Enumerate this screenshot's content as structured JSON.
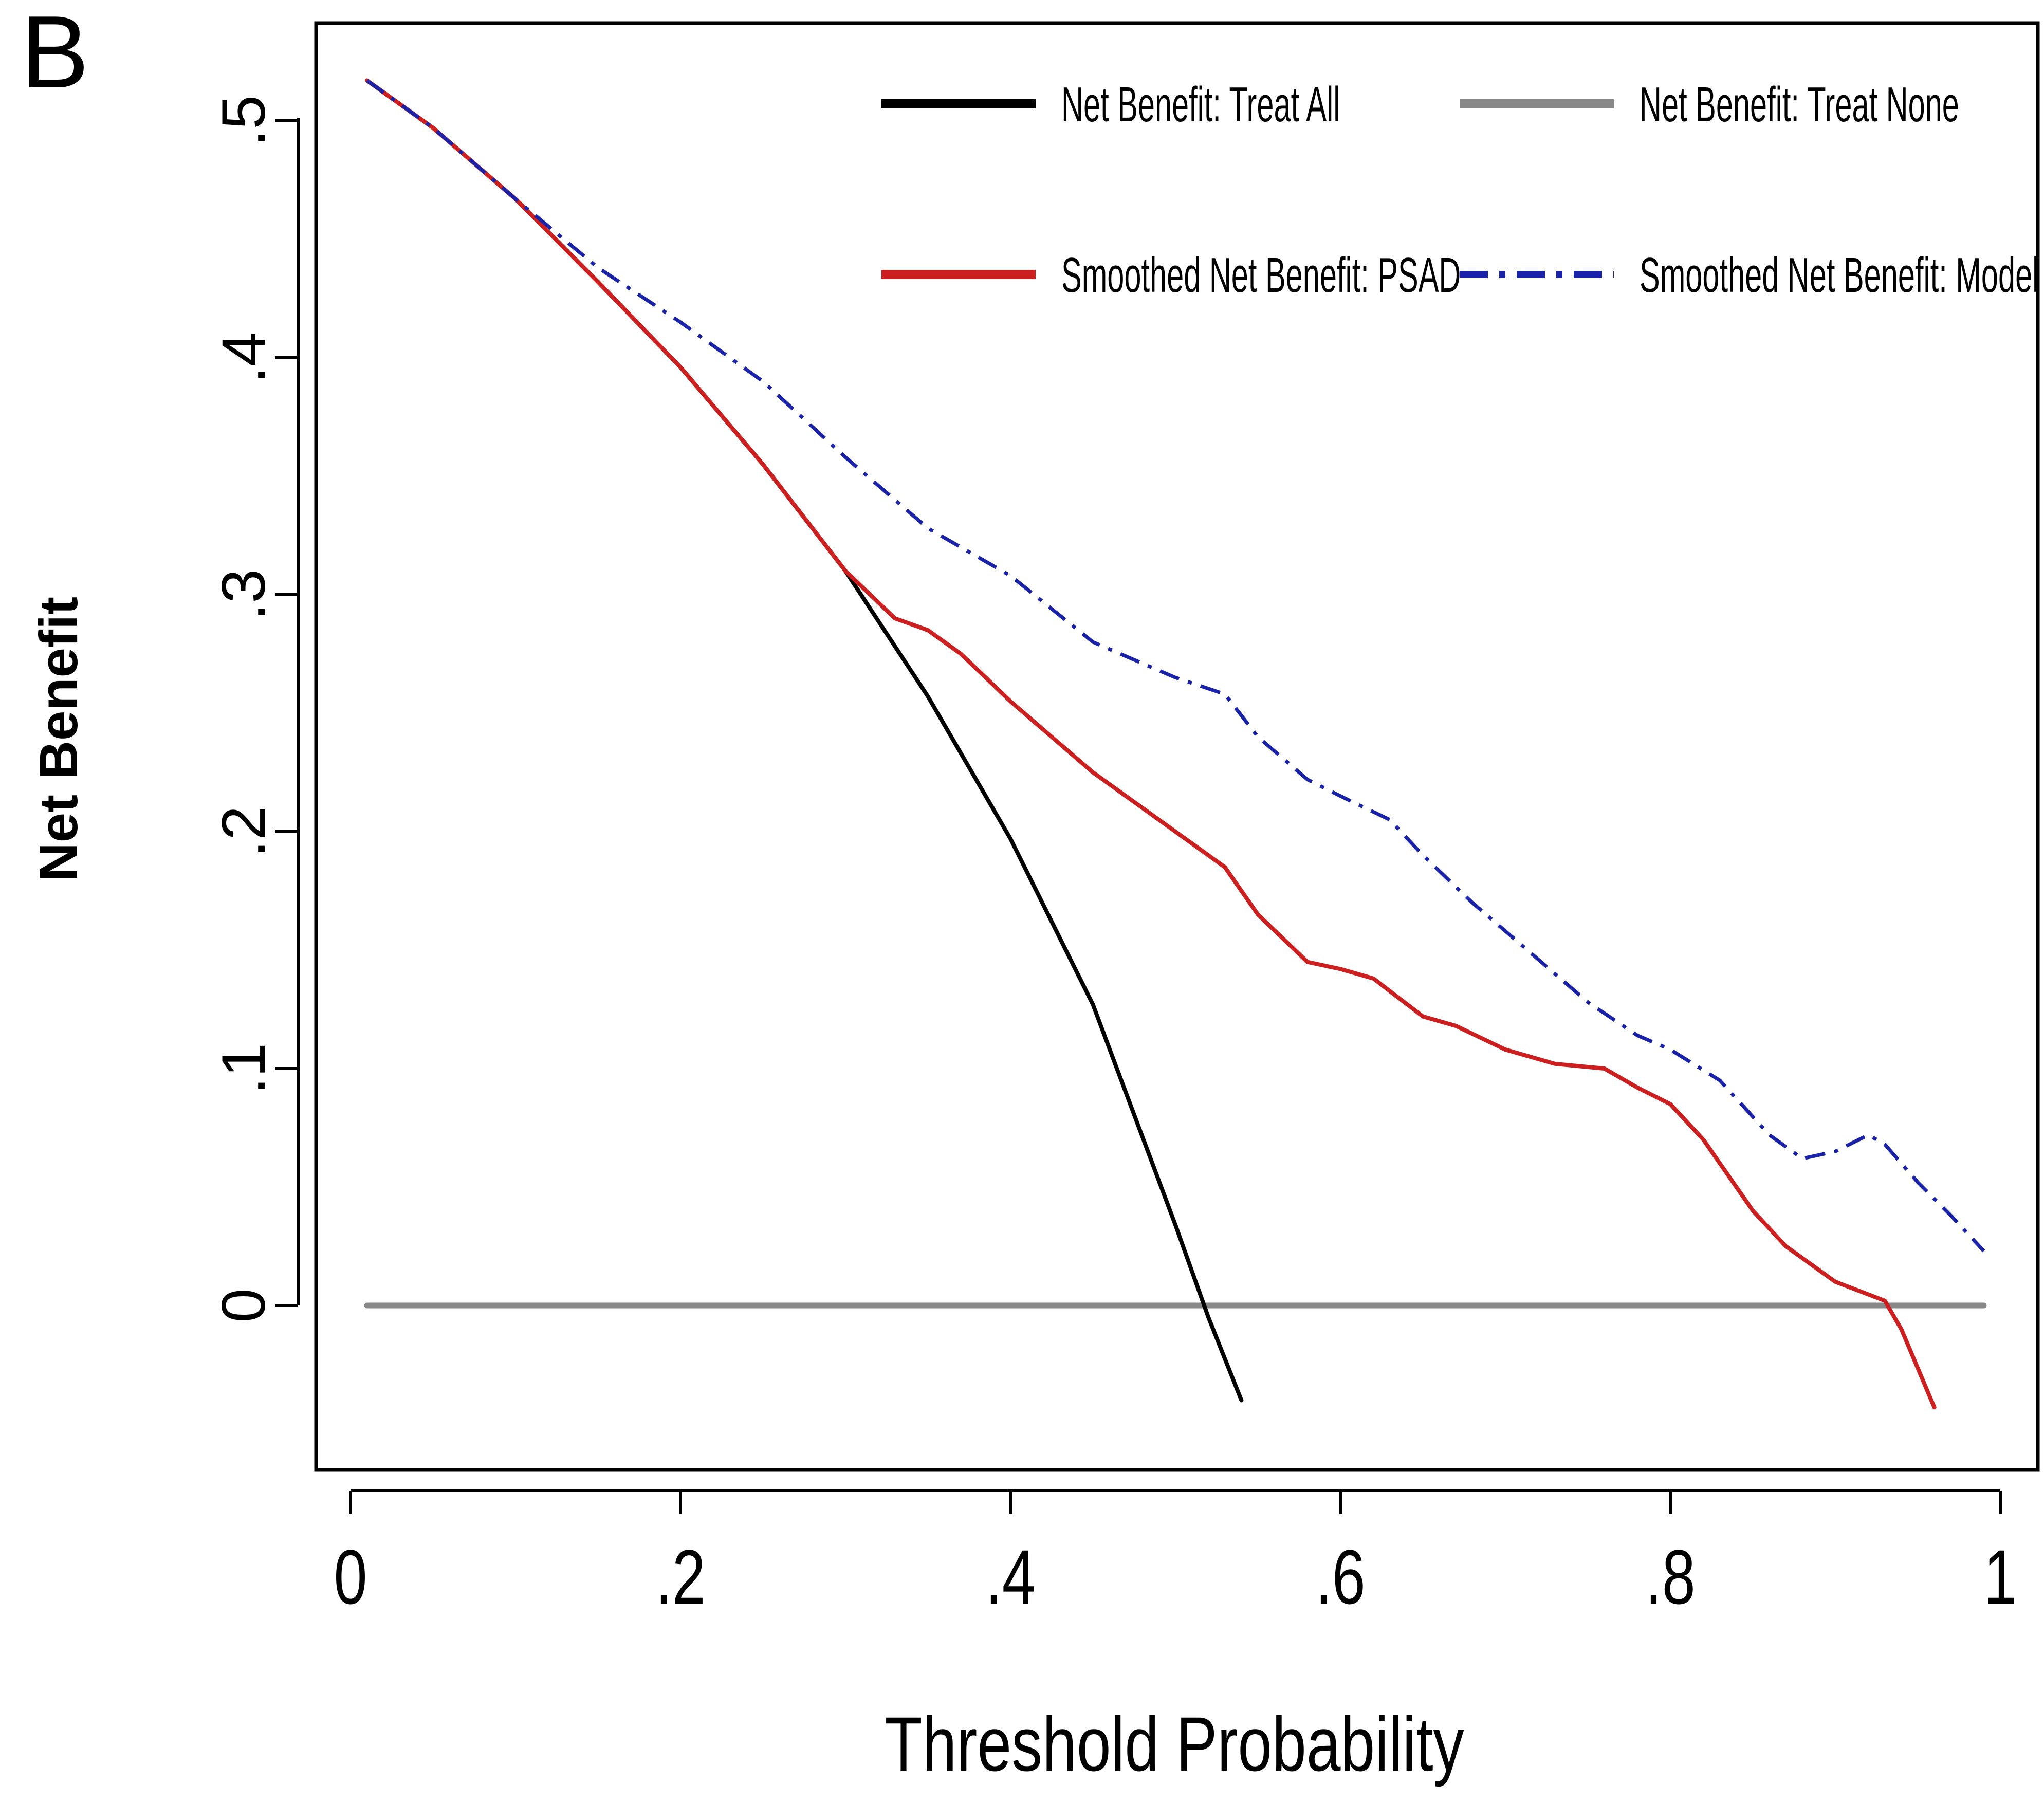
{
  "panel_label": "B",
  "chart_data": {
    "type": "line",
    "xlabel": "Threshold Probability",
    "ylabel": "Net Benefit",
    "xlim": [
      0,
      1
    ],
    "ylim": [
      -0.07,
      0.53
    ],
    "x_ticks": [
      0,
      0.2,
      0.4,
      0.6,
      0.8,
      1
    ],
    "x_tick_labels": [
      "0",
      ".2",
      ".4",
      ".6",
      ".8",
      "1"
    ],
    "y_ticks": [
      0,
      0.1,
      0.2,
      0.3,
      0.4,
      0.5
    ],
    "y_tick_labels": [
      "0",
      ".1",
      ".2",
      ".3",
      ".4",
      ".5"
    ],
    "legend_position": "top",
    "series": [
      {
        "name": "Net Benefit: Treat All",
        "legend_label": "Net Benefit: Treat All",
        "color": "#000000",
        "style": "solid",
        "x": [
          0.01,
          0.05,
          0.1,
          0.15,
          0.2,
          0.25,
          0.3,
          0.35,
          0.4,
          0.45,
          0.5,
          0.52,
          0.54
        ],
        "y": [
          0.517,
          0.497,
          0.467,
          0.432,
          0.396,
          0.355,
          0.31,
          0.257,
          0.197,
          0.127,
          0.034,
          -0.005,
          -0.04
        ]
      },
      {
        "name": "Net Benefit: Treat None",
        "legend_label": "Net Benefit: Treat None",
        "color": "#888888",
        "style": "solid",
        "x": [
          0.01,
          0.99
        ],
        "y": [
          0,
          0
        ]
      },
      {
        "name": "Smoothed Net Benefit: PSAD",
        "legend_label": "Smoothed Net Benefit: PSAD",
        "color": "#cc1f1f",
        "style": "solid",
        "x": [
          0.01,
          0.05,
          0.1,
          0.15,
          0.2,
          0.25,
          0.3,
          0.33,
          0.35,
          0.37,
          0.4,
          0.45,
          0.5,
          0.53,
          0.55,
          0.58,
          0.6,
          0.62,
          0.65,
          0.67,
          0.7,
          0.73,
          0.76,
          0.78,
          0.8,
          0.82,
          0.85,
          0.87,
          0.9,
          0.93,
          0.94,
          0.96
        ],
        "y": [
          0.517,
          0.497,
          0.467,
          0.432,
          0.396,
          0.355,
          0.31,
          0.29,
          0.285,
          0.275,
          0.255,
          0.225,
          0.2,
          0.185,
          0.165,
          0.145,
          0.142,
          0.138,
          0.122,
          0.118,
          0.108,
          0.102,
          0.1,
          0.092,
          0.085,
          0.07,
          0.04,
          0.025,
          0.01,
          0.002,
          -0.01,
          -0.043
        ]
      },
      {
        "name": "Smoothed Net Benefit: Model",
        "legend_label": "Smoothed Net Benefit: Model",
        "color": "#1a23a8",
        "style": "dashdot",
        "x": [
          0.01,
          0.05,
          0.1,
          0.15,
          0.2,
          0.25,
          0.3,
          0.35,
          0.4,
          0.45,
          0.5,
          0.53,
          0.55,
          0.58,
          0.6,
          0.63,
          0.65,
          0.68,
          0.7,
          0.73,
          0.75,
          0.78,
          0.8,
          0.83,
          0.86,
          0.88,
          0.9,
          0.92,
          0.93,
          0.95,
          0.97,
          0.99
        ],
        "y": [
          0.517,
          0.497,
          0.467,
          0.438,
          0.415,
          0.39,
          0.358,
          0.328,
          0.308,
          0.28,
          0.265,
          0.258,
          0.24,
          0.222,
          0.215,
          0.205,
          0.19,
          0.17,
          0.158,
          0.14,
          0.128,
          0.114,
          0.108,
          0.095,
          0.072,
          0.062,
          0.065,
          0.072,
          0.068,
          0.052,
          0.038,
          0.023
        ]
      }
    ]
  }
}
